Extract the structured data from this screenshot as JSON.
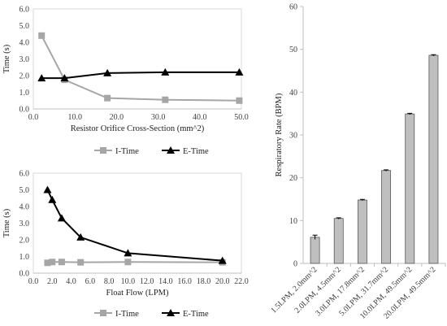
{
  "chart_data": [
    {
      "type": "line",
      "xlabel": "Resistor Orifice Cross-Section (mm^2)",
      "ylabel": "Time (s)",
      "xlim": [
        0,
        50
      ],
      "ylim": [
        0,
        6
      ],
      "xticks": [
        "0.0",
        "10.0",
        "20.0",
        "30.0",
        "40.0",
        "50.0"
      ],
      "yticks": [
        "0.0",
        "1.0",
        "2.0",
        "3.0",
        "4.0",
        "5.0",
        "6.0"
      ],
      "grid": false,
      "legend_position": "bottom",
      "series": [
        {
          "name": "I-Time",
          "color": "#a6a6a6",
          "marker": "square",
          "x": [
            2.0,
            7.5,
            17.8,
            31.7,
            49.5
          ],
          "y": [
            4.4,
            1.75,
            0.65,
            0.55,
            0.5
          ]
        },
        {
          "name": "E-Time",
          "color": "#000000",
          "marker": "triangle",
          "x": [
            2.0,
            7.5,
            17.8,
            31.7,
            49.5
          ],
          "y": [
            1.85,
            1.85,
            2.15,
            2.2,
            2.2
          ]
        }
      ]
    },
    {
      "type": "line",
      "xlabel": "Float Flow (LPM)",
      "ylabel": "Time (s)",
      "xlim": [
        0,
        22
      ],
      "ylim": [
        0,
        6
      ],
      "xticks": [
        "0.0",
        "2.0",
        "4.0",
        "6.0",
        "8.0",
        "10.0",
        "12.0",
        "14.0",
        "16.0",
        "18.0",
        "20.0",
        "22.0"
      ],
      "yticks": [
        "0.0",
        "1.0",
        "2.0",
        "3.0",
        "4.0",
        "5.0",
        "6.0"
      ],
      "grid": false,
      "legend_position": "bottom",
      "series": [
        {
          "name": "I-Time",
          "color": "#a6a6a6",
          "marker": "square",
          "x": [
            1.5,
            2.0,
            3.0,
            5.0,
            10.0,
            20.0
          ],
          "y": [
            0.62,
            0.67,
            0.67,
            0.65,
            0.67,
            0.65
          ]
        },
        {
          "name": "E-Time",
          "color": "#000000",
          "marker": "triangle",
          "x": [
            1.5,
            2.0,
            3.0,
            5.0,
            10.0,
            20.0
          ],
          "y": [
            5.0,
            4.4,
            3.3,
            2.15,
            1.2,
            0.75
          ]
        }
      ]
    },
    {
      "type": "bar",
      "ylabel": "Respiratory Rate (BPM)",
      "ylim": [
        0,
        60
      ],
      "yticks": [
        "0",
        "10",
        "20",
        "30",
        "40",
        "50",
        "60"
      ],
      "grid": false,
      "bar_color": "#bfbfbf",
      "categories": [
        "1.5LPM, 2.0mm^2",
        "2.0LPM, 4.5mm^2",
        "3.0LPM, 17.8mm^2",
        "5.0LPM, 31.7mm^2",
        "10.0LPM, 49.5mm^2",
        "20.0LPM, 49.5mm^2"
      ],
      "values": [
        6.1,
        10.5,
        14.8,
        21.7,
        34.9,
        48.6
      ],
      "error": [
        0.5,
        0.15,
        0.15,
        0.15,
        0.15,
        0.15
      ]
    }
  ]
}
